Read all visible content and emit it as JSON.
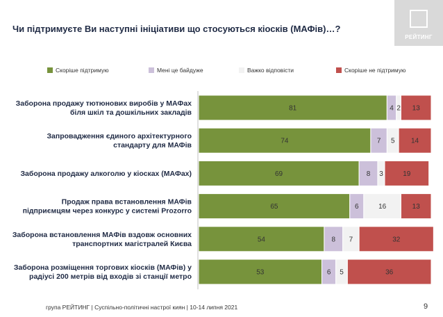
{
  "title": "Чи підтримуєте Ви наступні ініціативи що стосуються кіосків (МАФів)…?",
  "logo_text": "РЕЙТИНГ",
  "footer": "група РЕЙТИНГ | Суспільно-політичні настрої киян | 10-14 липня 2021",
  "page_number": "9",
  "colors": {
    "support": "#77933c",
    "indifferent": "#ccc0da",
    "hard_to_say": "#f2f2f2",
    "not_support": "#c0504d"
  },
  "chart_data": {
    "type": "bar",
    "orientation": "horizontal",
    "stacked": true,
    "categories": [
      [
        "Заборона продажу тютюнових виробів у МАФах",
        "біля шкіл та дошкільних закладів"
      ],
      [
        "Запровадження єдиного архітектурного",
        "стандарту для МАФів"
      ],
      [
        "Заборона продажу алкоголю у кіосках (МАФах)"
      ],
      [
        "Продаж права встановлення МАФів",
        "підприємцям через конкурс у системі Prozorro"
      ],
      [
        "Заборона встановлення МАФів вздовж основних",
        "транспортних магістралей Києва"
      ],
      [
        "Заборона розміщення торгових кіосків (МАФів) у",
        "радіусі 200 метрів від входів зі станції метро"
      ]
    ],
    "series": [
      {
        "name": "Скоріше підтримую",
        "values": [
          81,
          74,
          69,
          65,
          54,
          53
        ]
      },
      {
        "name": "Мені це байдуже",
        "values": [
          4,
          7,
          8,
          6,
          8,
          6
        ]
      },
      {
        "name": "Важко відповісти",
        "values": [
          2,
          5,
          3,
          16,
          7,
          5
        ]
      },
      {
        "name": "Скоріше не підтримую",
        "values": [
          13,
          14,
          19,
          13,
          32,
          36
        ]
      }
    ],
    "xlim": [
      0,
      100
    ],
    "legend_position": "top",
    "grid": false
  }
}
